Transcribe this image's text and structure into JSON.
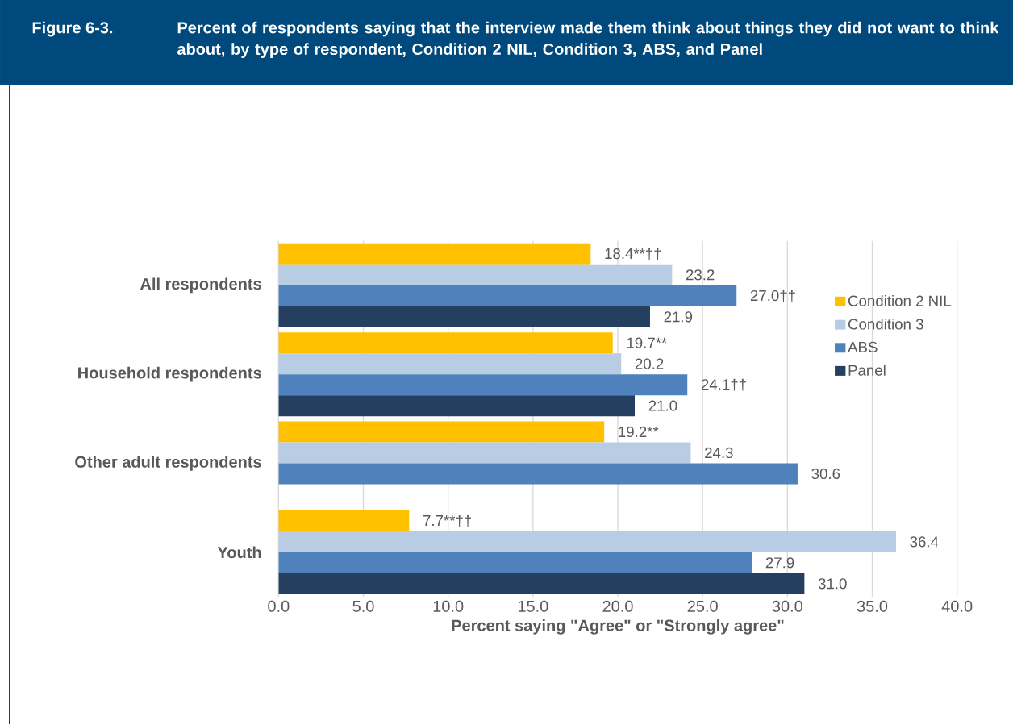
{
  "chart_data": {
    "type": "bar",
    "orientation": "horizontal",
    "title": "Figure 6-3.",
    "subtitle": "Percent of respondents saying that the interview made them think about things they did not want to think about, by type of respondent, Condition 2 NIL, Condition 3, ABS, and Panel",
    "xlabel": "Percent saying \"Agree\" or \"Strongly agree\"",
    "categories": [
      "All respondents",
      "Household respondents",
      "Other adult respondents",
      "Youth"
    ],
    "series": [
      {
        "name": "Condition 2 NIL",
        "color": "#ffc000",
        "values": [
          18.4,
          19.7,
          19.2,
          7.7
        ],
        "value_labels": [
          "18.4**††",
          "19.7**",
          "19.2**",
          "7.7**††"
        ]
      },
      {
        "name": "Condition 3",
        "color": "#b8cce4",
        "values": [
          23.2,
          20.2,
          24.3,
          36.4
        ],
        "value_labels": [
          "23.2",
          "20.2",
          "24.3",
          "36.4"
        ]
      },
      {
        "name": "ABS",
        "color": "#4f81bd",
        "values": [
          27.0,
          24.1,
          30.6,
          27.9
        ],
        "value_labels": [
          "27.0††",
          "24.1††",
          "30.6",
          "27.9"
        ]
      },
      {
        "name": "Panel",
        "color": "#243f60",
        "values": [
          21.9,
          21.0,
          null,
          31.0
        ],
        "value_labels": [
          "21.9",
          "21.0",
          null,
          "31.0"
        ]
      }
    ],
    "xlim": [
      0,
      40
    ],
    "xticks": [
      {
        "value": 0,
        "label": "0.0"
      },
      {
        "value": 5,
        "label": "5.0"
      },
      {
        "value": 10,
        "label": "10.0"
      },
      {
        "value": 15,
        "label": "15.0"
      },
      {
        "value": 20,
        "label": "20.0"
      },
      {
        "value": 25,
        "label": "25.0"
      },
      {
        "value": 30,
        "label": "30.0"
      },
      {
        "value": 35,
        "label": "35.0"
      },
      {
        "value": 40,
        "label": "40.0"
      }
    ],
    "grid": "x",
    "legend": "right"
  }
}
